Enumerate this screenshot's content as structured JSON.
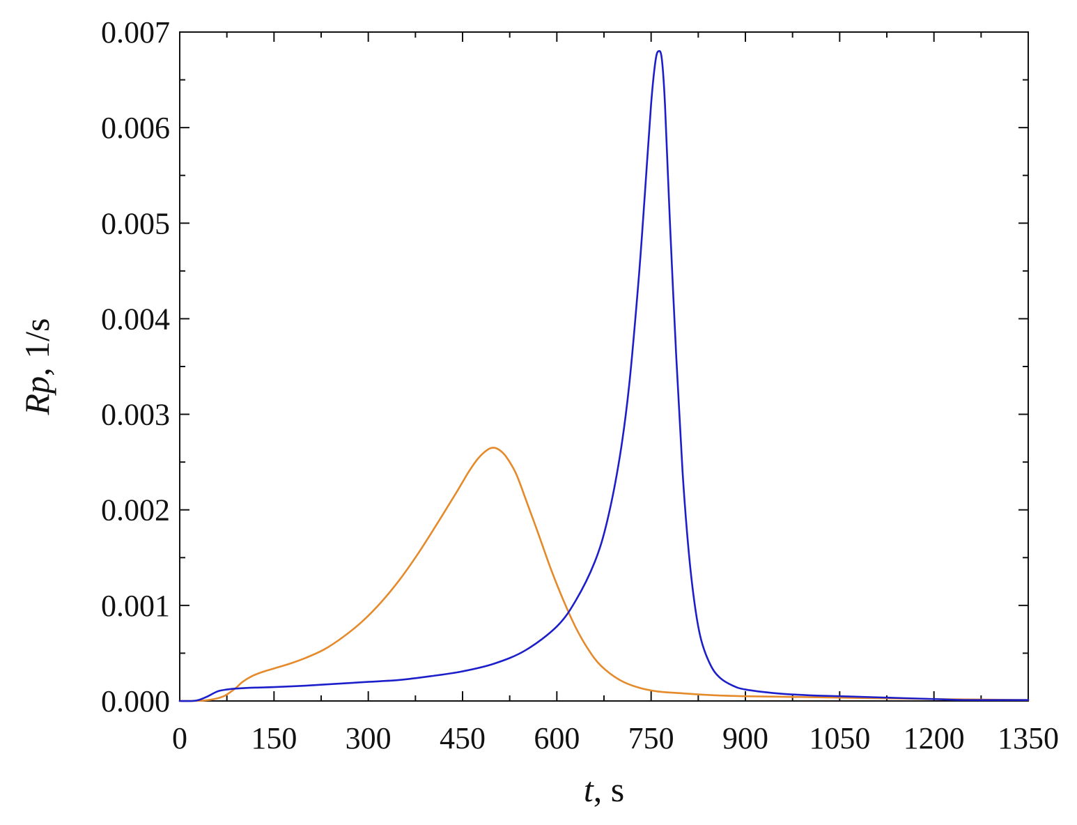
{
  "chart_data": {
    "type": "line",
    "title": "",
    "xlabel": {
      "var": "t",
      "rest": ", s"
    },
    "ylabel": {
      "var": "Rp",
      "rest": ", 1/s"
    },
    "xlim": [
      0,
      1350
    ],
    "ylim": [
      0,
      0.007
    ],
    "x_ticks": [
      0,
      150,
      300,
      450,
      600,
      750,
      900,
      1050,
      1200,
      1350
    ],
    "x_tick_labels": [
      "0",
      "150",
      "300",
      "450",
      "600",
      "750",
      "900",
      "1050",
      "1200",
      "1350"
    ],
    "y_ticks": [
      0,
      0.001,
      0.002,
      0.003,
      0.004,
      0.005,
      0.006,
      0.007
    ],
    "y_tick_labels": [
      "0.000",
      "0.001",
      "0.002",
      "0.003",
      "0.004",
      "0.005",
      "0.006",
      "0.007"
    ],
    "x_minor_step": 75,
    "y_minor_step": 0.0005,
    "grid": false,
    "legend": "none",
    "series": [
      {
        "color": "#e58a2a",
        "x": [
          0,
          20,
          40,
          55,
          70,
          80,
          90,
          100,
          115,
          130,
          150,
          175,
          200,
          230,
          260,
          290,
          320,
          350,
          380,
          410,
          440,
          460,
          475,
          490,
          500,
          510,
          520,
          535,
          550,
          570,
          590,
          610,
          630,
          650,
          670,
          700,
          730,
          760,
          800,
          850,
          900,
          950,
          1000,
          1100,
          1200,
          1350
        ],
        "y": [
          0,
          0,
          5e-06,
          2e-05,
          5e-05,
          9e-05,
          0.00014,
          0.0002,
          0.00026,
          0.0003,
          0.00034,
          0.00039,
          0.00045,
          0.00054,
          0.00067,
          0.00083,
          0.00103,
          0.00127,
          0.00155,
          0.00186,
          0.00218,
          0.0024,
          0.00254,
          0.00263,
          0.00265,
          0.00262,
          0.00255,
          0.00238,
          0.00212,
          0.00176,
          0.00139,
          0.00106,
          0.00077,
          0.00054,
          0.00037,
          0.00022,
          0.00014,
          0.0001,
          8e-05,
          6e-05,
          5e-05,
          4.5e-05,
          4e-05,
          3e-05,
          2e-05,
          1e-05
        ]
      },
      {
        "color": "#1c1fc9",
        "x": [
          0,
          20,
          30,
          45,
          60,
          75,
          90,
          120,
          150,
          200,
          250,
          300,
          350,
          400,
          450,
          500,
          550,
          600,
          630,
          660,
          680,
          700,
          715,
          730,
          740,
          750,
          757,
          762,
          767,
          772,
          780,
          790,
          800,
          810,
          820,
          830,
          845,
          860,
          880,
          900,
          950,
          1000,
          1050,
          1100,
          1200,
          1250,
          1350
        ],
        "y": [
          0,
          0,
          1e-05,
          5e-05,
          0.0001,
          0.00012,
          0.00013,
          0.00014,
          0.000145,
          0.00016,
          0.00018,
          0.0002,
          0.00022,
          0.00026,
          0.00031,
          0.00039,
          0.00053,
          0.00078,
          0.00105,
          0.00145,
          0.00188,
          0.00255,
          0.0033,
          0.0044,
          0.0053,
          0.00625,
          0.0067,
          0.0068,
          0.00672,
          0.00625,
          0.005,
          0.0036,
          0.0024,
          0.00155,
          0.00098,
          0.00063,
          0.00037,
          0.00024,
          0.00016,
          0.00012,
          8e-05,
          6e-05,
          5e-05,
          4e-05,
          2e-05,
          1e-05,
          1e-05
        ]
      }
    ]
  }
}
